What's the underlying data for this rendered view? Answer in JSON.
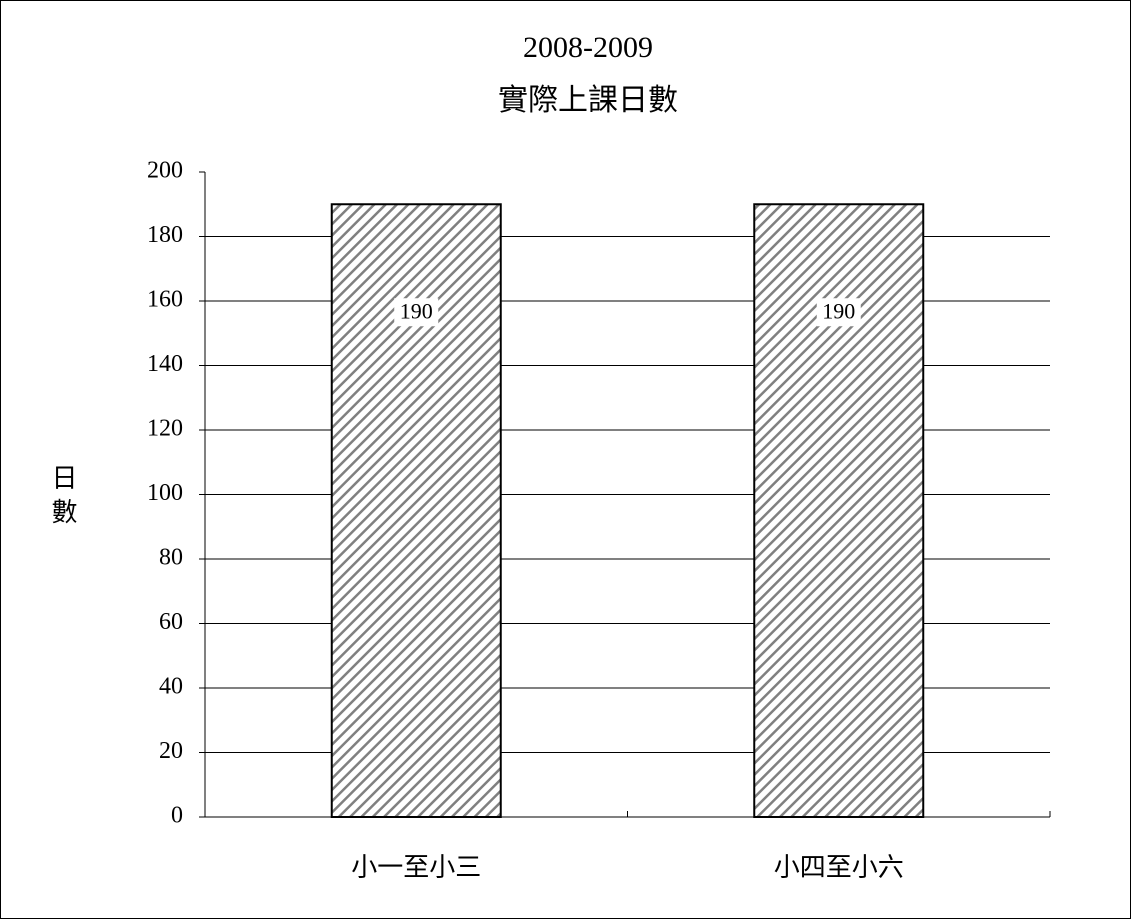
{
  "chart_data": {
    "type": "bar",
    "title": "2008-2009",
    "subtitle": "實際上課日數",
    "ylabel": "日數",
    "categories": [
      "小一至小三",
      "小四至小六"
    ],
    "values": [
      190,
      190
    ],
    "color": "#808080",
    "ylim": [
      0,
      200
    ],
    "yticks": [
      0,
      20,
      40,
      60,
      80,
      100,
      120,
      140,
      160,
      180,
      200
    ],
    "grid": true
  }
}
